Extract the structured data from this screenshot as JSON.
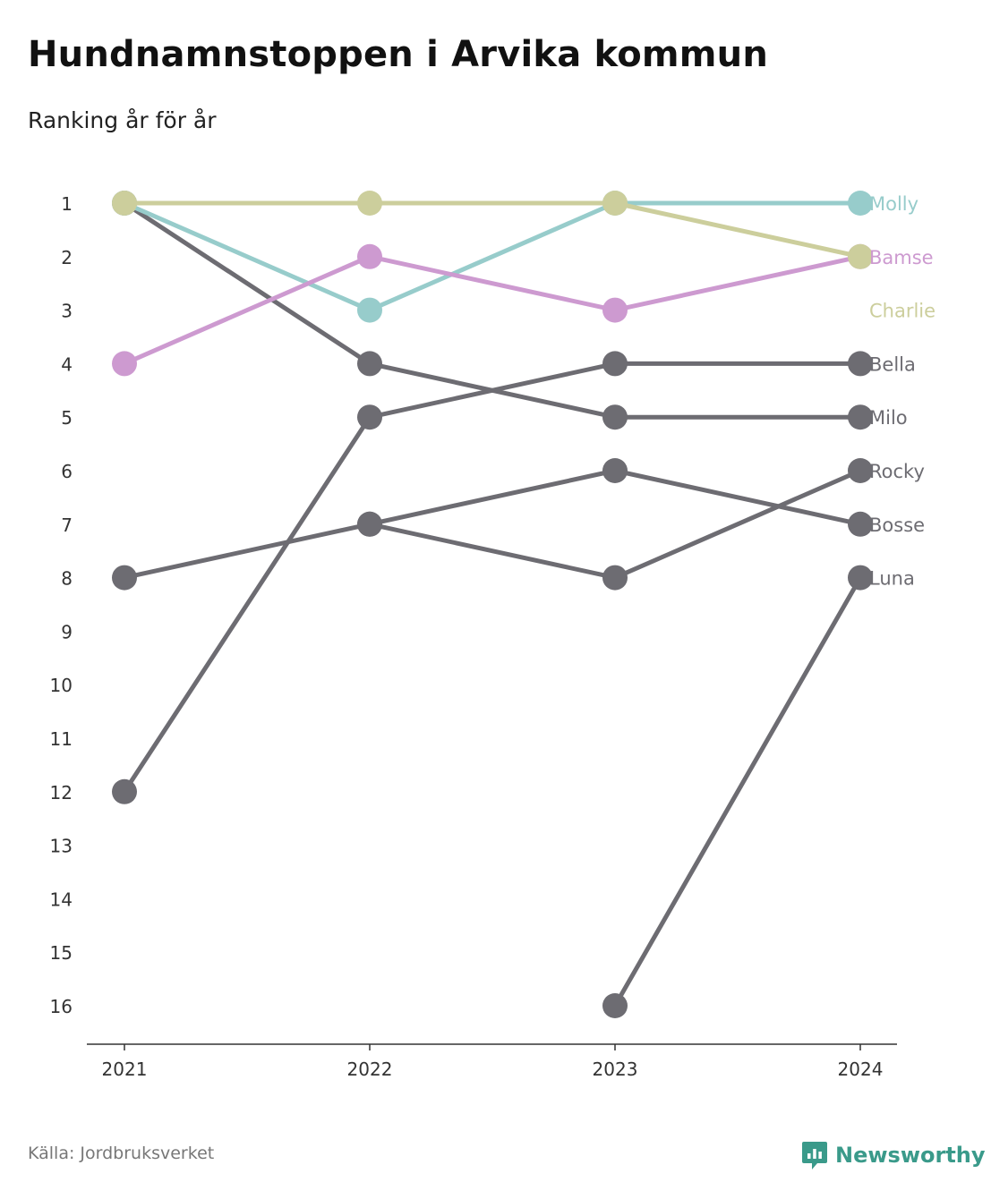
{
  "title": "Hundnamnstoppen i Arvika kommun",
  "subtitle": "Ranking år för år",
  "source": "Källa: Jordbruksverket",
  "brand": "Newsworthy",
  "colors": {
    "gray": "#6d6c72",
    "molly": "#97cccb",
    "bamse": "#cd9ad0",
    "charlie": "#ccce9c",
    "brand": "#3a9a8a"
  },
  "chart_data": {
    "type": "line",
    "x": [
      "2021",
      "2022",
      "2023",
      "2024"
    ],
    "y_ticks": [
      1,
      2,
      3,
      4,
      5,
      6,
      7,
      8,
      9,
      10,
      11,
      12,
      13,
      14,
      15,
      16
    ],
    "ylim": [
      1,
      16
    ],
    "y_inverted": true,
    "grid": false,
    "legend": "direct labels at right",
    "series": [
      {
        "name": "Molly",
        "values": [
          1,
          3,
          1,
          1
        ],
        "color": "#97cccb"
      },
      {
        "name": "Bamse",
        "values": [
          4,
          2,
          3,
          2
        ],
        "color": "#cd9ad0"
      },
      {
        "name": "Charlie",
        "values": [
          1,
          1,
          1,
          2
        ],
        "color": "#ccce9c"
      },
      {
        "name": "Bella",
        "values": [
          12,
          5,
          4,
          4
        ],
        "color": "#6d6c72"
      },
      {
        "name": "Milo",
        "values": [
          1,
          4,
          5,
          5
        ],
        "color": "#6d6c72"
      },
      {
        "name": "Rocky",
        "values": [
          null,
          7,
          8,
          6
        ],
        "color": "#6d6c72"
      },
      {
        "name": "Bosse",
        "values": [
          8,
          7,
          6,
          7
        ],
        "color": "#6d6c72"
      },
      {
        "name": "Luna",
        "values": [
          null,
          null,
          16,
          8
        ],
        "color": "#6d6c72"
      }
    ]
  }
}
